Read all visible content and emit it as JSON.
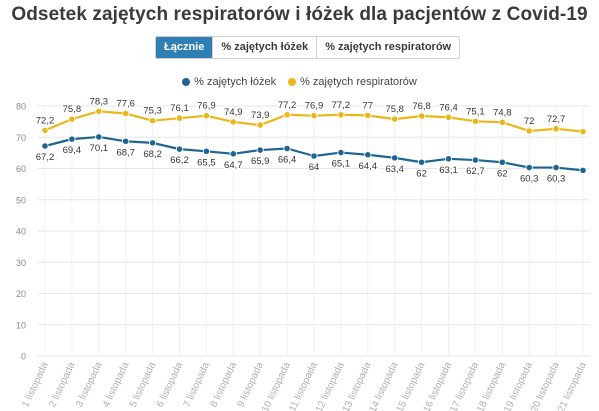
{
  "header": {
    "title": "Odsetek zajętych respiratorów i łóżek dla pacjentów z Covid-19"
  },
  "toggle": {
    "buttons": [
      {
        "label": "Łącznie",
        "active": true
      },
      {
        "label": "% zajętych łóżek",
        "active": false
      },
      {
        "label": "% zajętych respiratorów",
        "active": false
      }
    ]
  },
  "colors": {
    "beds": "#1f6592",
    "respirators": "#ecb619",
    "active_button": "#2f7fb5"
  },
  "chart_data": {
    "type": "line",
    "title": "Odsetek zajętych respiratorów i łóżek dla pacjentów z Covid-19",
    "xlabel": "",
    "ylabel": "",
    "ylim": [
      0,
      80
    ],
    "yticks": [
      0,
      10,
      20,
      30,
      40,
      50,
      60,
      70,
      80
    ],
    "grid": true,
    "legend_position": "top-center",
    "categories": [
      "1 listopada",
      "2 listopada",
      "3 listopada",
      "4 listopada",
      "5 listopada",
      "6 listopada",
      "7 listopada",
      "8 listopada",
      "9 listopada",
      "10 listopada",
      "11 listopada",
      "12 listopada",
      "13 listopada",
      "14 listopada",
      "15 listopada",
      "16 listopada",
      "17 listopada",
      "18 listopada",
      "19 listopada",
      "20 listopada",
      "21 listopada"
    ],
    "series": [
      {
        "name": "% zajętych łóżek",
        "color": "#1f6592",
        "values": [
          67.2,
          69.4,
          70.1,
          68.7,
          68.2,
          66.2,
          65.5,
          64.7,
          65.9,
          66.4,
          64,
          65.1,
          64.4,
          63.4,
          62,
          63.1,
          62.7,
          62,
          60.3,
          60.3,
          59.4
        ],
        "labels": [
          "67,2",
          "69,4",
          "70,1",
          "68,7",
          "68,2",
          "66,2",
          "65,5",
          "64,7",
          "65,9",
          "66,4",
          "64",
          "65,1",
          "64,4",
          "63,4",
          "62",
          "63,1",
          "62,7",
          "62",
          "60,3",
          "60,3",
          ""
        ]
      },
      {
        "name": "% zajętych respiratorów",
        "color": "#ecb619",
        "values": [
          72.2,
          75.8,
          78.3,
          77.6,
          75.3,
          76.1,
          76.9,
          74.9,
          73.9,
          77.2,
          76.9,
          77.2,
          77,
          75.8,
          76.8,
          76.4,
          75.1,
          74.8,
          72,
          72.7,
          71.8
        ],
        "labels": [
          "72,2",
          "75,8",
          "78,3",
          "77,6",
          "75,3",
          "76,1",
          "76,9",
          "74,9",
          "73,9",
          "77,2",
          "76,9",
          "77,2",
          "77",
          "75,8",
          "76,8",
          "76,4",
          "75,1",
          "74,8",
          "72",
          "72,7",
          ""
        ]
      }
    ]
  }
}
